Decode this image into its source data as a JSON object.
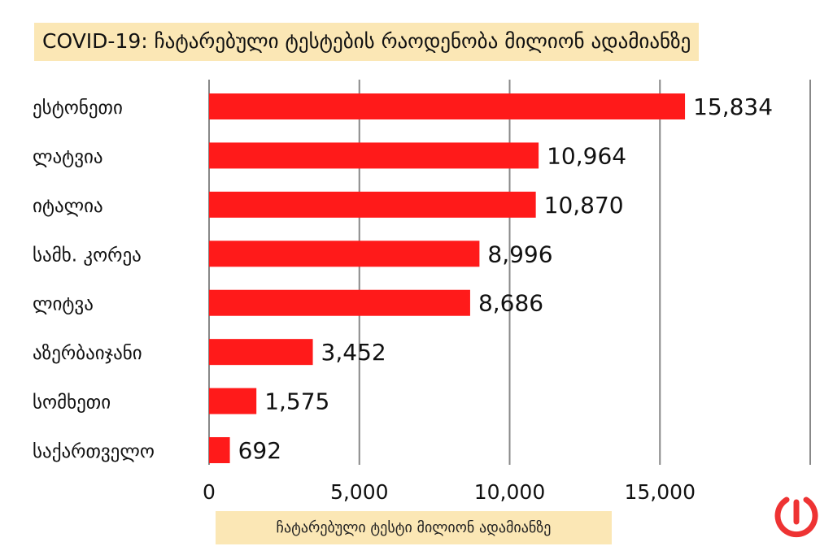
{
  "title": "COVID-19: ჩატარებული ტესტების რაოდენობა მილიონ ადამიანზე",
  "colors": {
    "bar": "#ff1a1a",
    "grid": "#888888",
    "label_bg": "#fbe7b5",
    "logo": "#ee3333"
  },
  "logo": "pause-power-icon",
  "chart_data": {
    "type": "bar",
    "orientation": "horizontal",
    "title": "COVID-19: ჩატარებული ტესტების რაოდენობა მილიონ ადამიანზე",
    "xlabel": "ჩატარებული ტესტი მილიონ ადამიანზე",
    "ylabel": "",
    "categories": [
      "ესტონეთი",
      "ლატვია",
      "იტალია",
      "სამხ. კორეა",
      "ლიტვა",
      "აზერბაიჯანი",
      "სომხეთი",
      "საქართველო"
    ],
    "values": [
      15834,
      10964,
      10870,
      8996,
      8686,
      3452,
      1575,
      692
    ],
    "value_labels": [
      "15,834",
      "10,964",
      "10,870",
      "8,996",
      "8,686",
      "3,452",
      "1,575",
      "692"
    ],
    "xlim": [
      0,
      20000
    ],
    "xticks": [
      0,
      5000,
      10000,
      15000
    ],
    "xtick_labels": [
      "0",
      "5,000",
      "10,000",
      "15,000"
    ],
    "grid": true
  }
}
